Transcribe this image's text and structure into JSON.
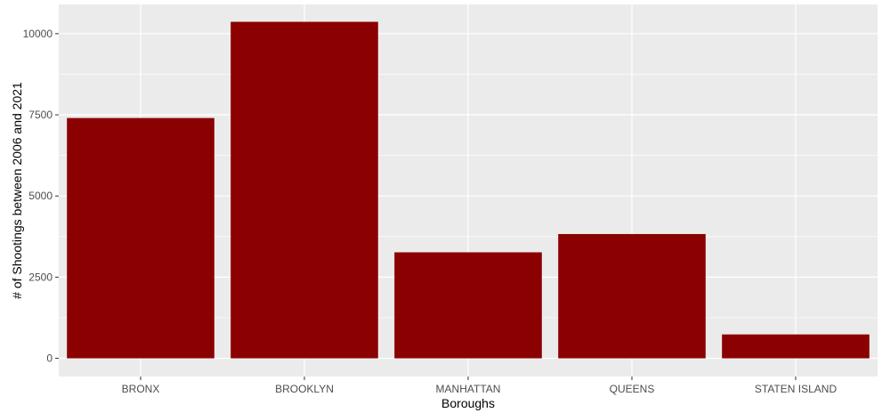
{
  "chart_data": {
    "type": "bar",
    "categories": [
      "BRONX",
      "BROOKLYN",
      "MANHATTAN",
      "QUEENS",
      "STATEN ISLAND"
    ],
    "values": [
      7402,
      10365,
      3265,
      3828,
      736
    ],
    "xlabel": "Boroughs",
    "ylabel": "# of Shootings between 2006 and 2021",
    "ylim": [
      -560,
      10900
    ],
    "yticks": [
      0,
      2500,
      5000,
      7500,
      10000
    ],
    "grid": true,
    "colors": {
      "bar": "#8B0000",
      "panel": "#EBEBEB",
      "grid": "#FFFFFF"
    }
  }
}
